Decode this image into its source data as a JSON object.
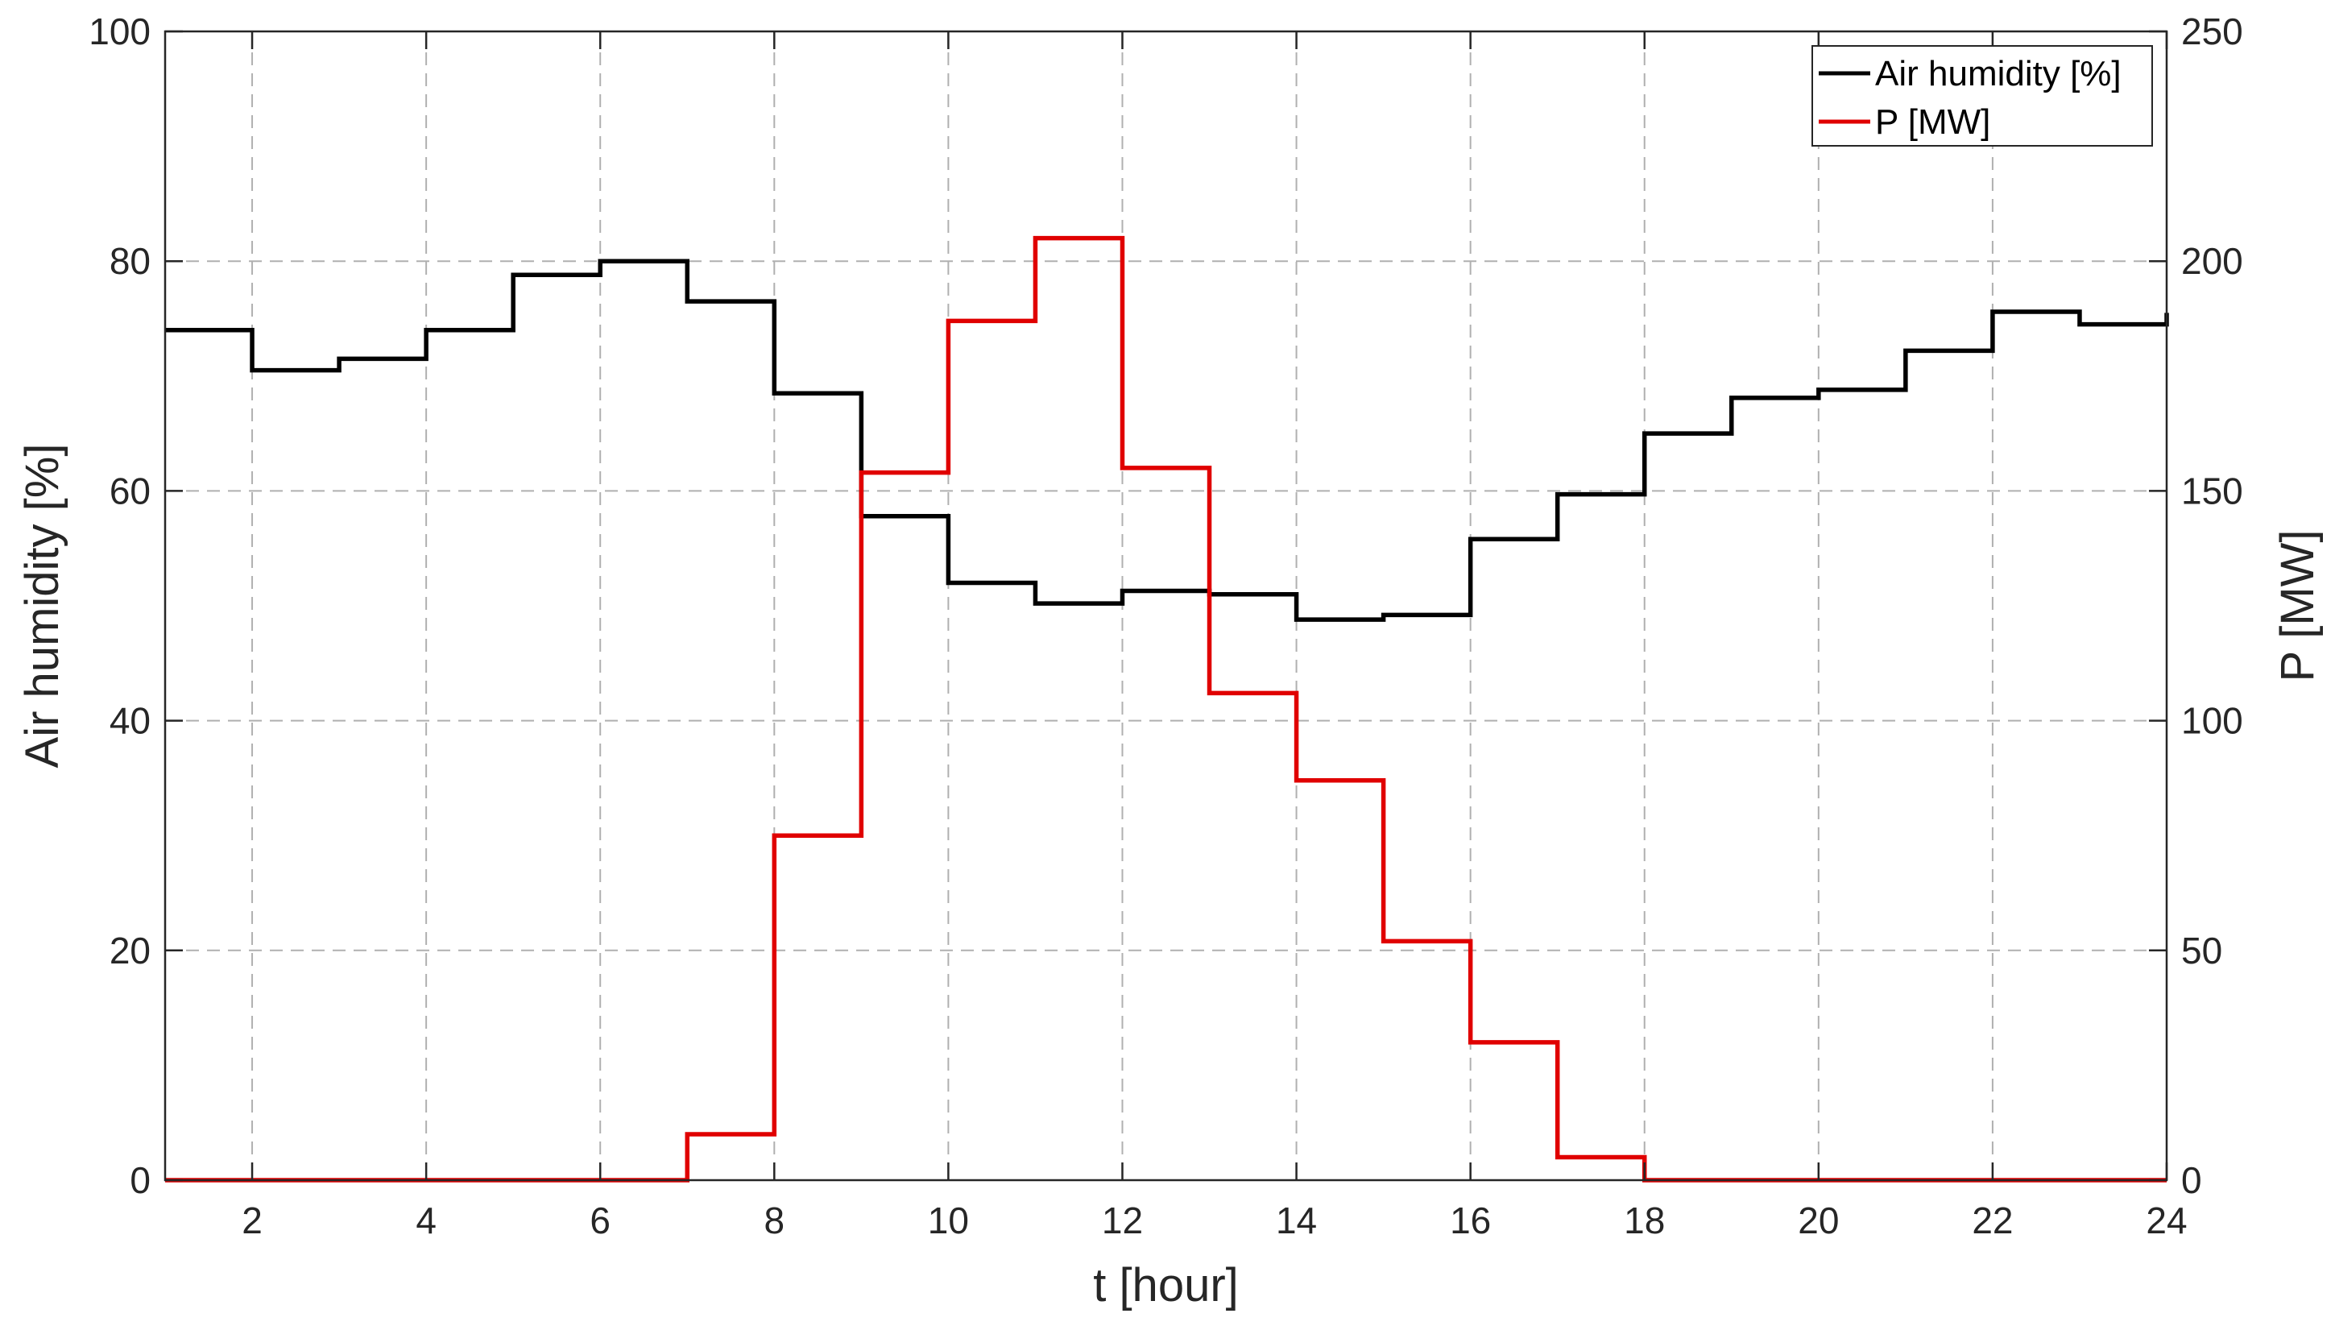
{
  "chart_data": {
    "type": "line",
    "step": "post",
    "xlabel": "t [hour]",
    "ylabel_left": "Air humidity [%]",
    "ylabel_right": "P [MW]",
    "xlim": [
      1,
      24
    ],
    "ylim_left": [
      0,
      100
    ],
    "ylim_right": [
      0,
      250
    ],
    "xticks": [
      2,
      4,
      6,
      8,
      10,
      12,
      14,
      16,
      18,
      20,
      22,
      24
    ],
    "yticks_left": [
      0,
      20,
      40,
      60,
      80,
      100
    ],
    "yticks_right": [
      0,
      50,
      100,
      150,
      200,
      250
    ],
    "grid": true,
    "legend_position": "top-right",
    "x": [
      1,
      2,
      3,
      4,
      5,
      6,
      7,
      8,
      9,
      10,
      11,
      12,
      13,
      14,
      15,
      16,
      17,
      18,
      19,
      20,
      21,
      22,
      23,
      24
    ],
    "series": [
      {
        "name": "Air humidity [%]",
        "axis": "left",
        "color": "#000000",
        "values": [
          74.0,
          70.5,
          71.5,
          74.0,
          78.8,
          80.0,
          76.5,
          68.5,
          57.8,
          52.0,
          50.2,
          51.3,
          51.0,
          48.8,
          49.2,
          55.8,
          59.7,
          65.0,
          68.1,
          68.8,
          72.2,
          75.6,
          74.5,
          75.5
        ]
      },
      {
        "name": "P [MW]",
        "axis": "right",
        "color": "#e00000",
        "values": [
          0,
          0,
          0,
          0,
          0,
          0,
          10,
          75,
          154,
          187,
          205,
          155,
          106,
          87,
          52,
          30,
          5,
          0,
          0,
          0,
          0,
          0,
          0,
          0
        ]
      }
    ]
  }
}
